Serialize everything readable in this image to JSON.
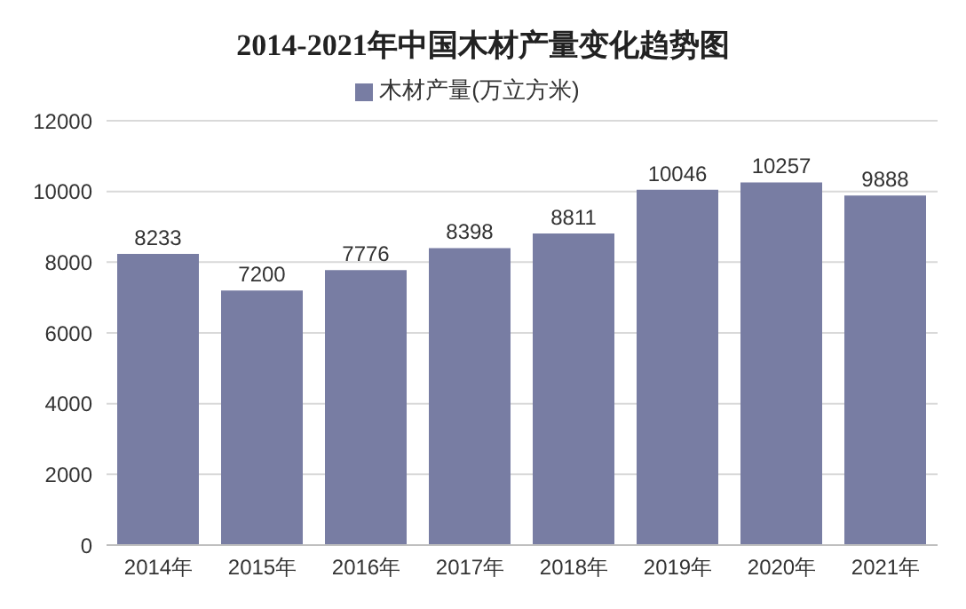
{
  "chart_data": {
    "type": "bar",
    "title": "2014-2021年中国木材产量变化趋势图",
    "categories": [
      "2014年",
      "2015年",
      "2016年",
      "2017年",
      "2018年",
      "2019年",
      "2020年",
      "2021年"
    ],
    "series": [
      {
        "name": "木材产量(万立方米)",
        "color": "#787da3",
        "values": [
          8233,
          7200,
          7776,
          8398,
          8811,
          10046,
          10257,
          9888
        ]
      }
    ],
    "ylim": [
      0,
      12000
    ],
    "yticks": [
      0,
      2000,
      4000,
      6000,
      8000,
      10000,
      12000
    ],
    "grid": "y",
    "legend": "top",
    "data_labels": true
  }
}
